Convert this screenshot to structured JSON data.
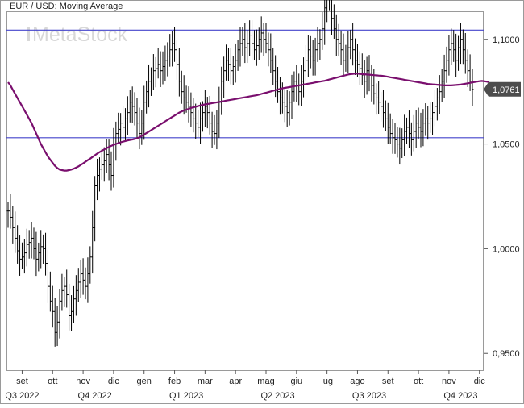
{
  "chart_data": {
    "type": "line",
    "title": "EUR / USD; Moving Average",
    "watermark": "MetaStock",
    "ylim": [
      0.942,
      1.113
    ],
    "y_ticks": [
      {
        "value": 0.95,
        "label": "0,9500"
      },
      {
        "value": 1.0,
        "label": "1,0000"
      },
      {
        "value": 1.05,
        "label": "1,0500"
      },
      {
        "value": 1.1,
        "label": "1,1000"
      }
    ],
    "last_value": 1.0761,
    "last_value_label": "1,0761",
    "horizontal_lines": [
      1.1044,
      1.053
    ],
    "month_ticks": [
      {
        "label": "set",
        "index": 6
      },
      {
        "label": "ott",
        "index": 19
      },
      {
        "label": "nov",
        "index": 32
      },
      {
        "label": "dic",
        "index": 45
      },
      {
        "label": "gen",
        "index": 58
      },
      {
        "label": "feb",
        "index": 71
      },
      {
        "label": "mar",
        "index": 84
      },
      {
        "label": "apr",
        "index": 97
      },
      {
        "label": "mag",
        "index": 110
      },
      {
        "label": "giu",
        "index": 123
      },
      {
        "label": "lug",
        "index": 136
      },
      {
        "label": "ago",
        "index": 149
      },
      {
        "label": "set",
        "index": 162
      },
      {
        "label": "ott",
        "index": 175
      },
      {
        "label": "nov",
        "index": 188
      },
      {
        "label": "dic",
        "index": 201
      }
    ],
    "quarter_ticks": [
      {
        "label": "Q3 2022",
        "index": 6
      },
      {
        "label": "Q4 2022",
        "index": 37
      },
      {
        "label": "Q1 2023",
        "index": 76
      },
      {
        "label": "Q2 2023",
        "index": 115
      },
      {
        "label": "Q3 2023",
        "index": 154
      },
      {
        "label": "Q4 2023",
        "index": 193
      }
    ],
    "series": [
      {
        "style": "ohlc-bars",
        "color": "#000000",
        "close": [
          1.018,
          1.015,
          1.01,
          1.005,
          0.999,
          0.995,
          0.996,
          0.998,
          1.002,
          1.003,
          1.005,
          1.0,
          0.995,
          0.998,
          1.001,
          1.0,
          0.993,
          0.982,
          0.975,
          0.97,
          0.96,
          0.965,
          0.975,
          0.98,
          0.982,
          0.978,
          0.968,
          0.97,
          0.976,
          0.98,
          0.984,
          0.988,
          0.985,
          0.982,
          0.988,
          0.996,
          1.01,
          1.03,
          1.035,
          1.038,
          1.04,
          1.042,
          1.045,
          1.04,
          1.035,
          1.05,
          1.055,
          1.057,
          1.06,
          1.058,
          1.062,
          1.065,
          1.07,
          1.068,
          1.065,
          1.06,
          1.055,
          1.06,
          1.07,
          1.075,
          1.08,
          1.082,
          1.085,
          1.086,
          1.088,
          1.085,
          1.087,
          1.09,
          1.092,
          1.095,
          1.098,
          1.095,
          1.088,
          1.08,
          1.075,
          1.072,
          1.07,
          1.068,
          1.065,
          1.062,
          1.06,
          1.058,
          1.062,
          1.065,
          1.068,
          1.065,
          1.06,
          1.056,
          1.055,
          1.06,
          1.07,
          1.08,
          1.085,
          1.09,
          1.088,
          1.085,
          1.087,
          1.09,
          1.095,
          1.098,
          1.1,
          1.096,
          1.098,
          1.102,
          1.098,
          1.095,
          1.097,
          1.1,
          1.103,
          1.1,
          1.098,
          1.095,
          1.09,
          1.085,
          1.08,
          1.075,
          1.072,
          1.07,
          1.068,
          1.065,
          1.07,
          1.075,
          1.08,
          1.078,
          1.075,
          1.08,
          1.085,
          1.09,
          1.095,
          1.092,
          1.09,
          1.095,
          1.098,
          1.1,
          1.105,
          1.115,
          1.12,
          1.122,
          1.11,
          1.105,
          1.1,
          1.098,
          1.095,
          1.09,
          1.092,
          1.096,
          1.1,
          1.095,
          1.09,
          1.088,
          1.086,
          1.083,
          1.08,
          1.085,
          1.082,
          1.078,
          1.074,
          1.072,
          1.07,
          1.068,
          1.065,
          1.062,
          1.058,
          1.055,
          1.053,
          1.052,
          1.05,
          1.048,
          1.052,
          1.056,
          1.058,
          1.055,
          1.052,
          1.056,
          1.06,
          1.058,
          1.056,
          1.06,
          1.062,
          1.06,
          1.062,
          1.065,
          1.068,
          1.072,
          1.075,
          1.08,
          1.085,
          1.09,
          1.095,
          1.098,
          1.095,
          1.09,
          1.096,
          1.1,
          1.095,
          1.09,
          1.085,
          1.08,
          1.0761
        ]
      },
      {
        "style": "moving-average",
        "color": "#7a0f6e",
        "values": [
          1.0795,
          1.078,
          1.076,
          1.074,
          1.072,
          1.07,
          1.068,
          1.066,
          1.064,
          1.062,
          1.06,
          1.0575,
          1.055,
          1.0525,
          1.05,
          1.048,
          1.046,
          1.044,
          1.0425,
          1.041,
          1.0395,
          1.0385,
          1.0378,
          1.0375,
          1.0373,
          1.0373,
          1.0375,
          1.0378,
          1.0382,
          1.0387,
          1.0393,
          1.04,
          1.0407,
          1.0415,
          1.0423,
          1.043,
          1.0438,
          1.0446,
          1.0454,
          1.0461,
          1.0468,
          1.0474,
          1.048,
          1.0486,
          1.0491,
          1.0496,
          1.05,
          1.0504,
          1.0508,
          1.0511,
          1.0514,
          1.0517,
          1.0519,
          1.0521,
          1.0524,
          1.0527,
          1.0532,
          1.0538,
          1.0545,
          1.0552,
          1.0559,
          1.0566,
          1.0573,
          1.058,
          1.0587,
          1.0594,
          1.0601,
          1.0608,
          1.0615,
          1.0622,
          1.0629,
          1.0636,
          1.0643,
          1.065,
          1.0655,
          1.066,
          1.0664,
          1.0668,
          1.0672,
          1.0675,
          1.0678,
          1.0681,
          1.0684,
          1.0687,
          1.0689,
          1.0691,
          1.0693,
          1.0695,
          1.0697,
          1.0699,
          1.0701,
          1.0703,
          1.0705,
          1.0707,
          1.0709,
          1.0711,
          1.0713,
          1.0715,
          1.0717,
          1.0719,
          1.0721,
          1.0723,
          1.0725,
          1.0727,
          1.0729,
          1.0731,
          1.0733,
          1.0736,
          1.0739,
          1.0742,
          1.0745,
          1.0748,
          1.0751,
          1.0754,
          1.0757,
          1.076,
          1.0763,
          1.0766,
          1.0768,
          1.077,
          1.0772,
          1.0774,
          1.0776,
          1.0778,
          1.078,
          1.0782,
          1.0784,
          1.0786,
          1.0788,
          1.079,
          1.0792,
          1.0794,
          1.0796,
          1.0798,
          1.08,
          1.0802,
          1.0805,
          1.0808,
          1.0811,
          1.0814,
          1.0817,
          1.082,
          1.0823,
          1.0826,
          1.0829,
          1.0832,
          1.0834,
          1.0835,
          1.0836,
          1.0836,
          1.0835,
          1.0834,
          1.0833,
          1.0832,
          1.0831,
          1.083,
          1.0829,
          1.0828,
          1.0827,
          1.0826,
          1.0825,
          1.0823,
          1.0821,
          1.0819,
          1.0817,
          1.0815,
          1.0813,
          1.0811,
          1.0809,
          1.0807,
          1.0805,
          1.0803,
          1.0801,
          1.0799,
          1.0797,
          1.0795,
          1.0793,
          1.0791,
          1.0789,
          1.0787,
          1.0786,
          1.0785,
          1.0784,
          1.0783,
          1.0782,
          1.0781,
          1.078,
          1.078,
          1.078,
          1.078,
          1.0781,
          1.0782,
          1.0783,
          1.0784,
          1.0786,
          1.0788,
          1.079,
          1.0792,
          1.0794,
          1.0796,
          1.0798,
          1.08,
          1.0801,
          1.08,
          1.0798,
          1.0796
        ]
      }
    ]
  },
  "colors": {
    "price_bars": "#000000",
    "moving_average": "#7a0f6e",
    "horizontal_lines": "#4444cc",
    "last_value_badge": "#4d4d4d",
    "watermark": "#d6d6d6",
    "frame": "#9a9a9a"
  }
}
